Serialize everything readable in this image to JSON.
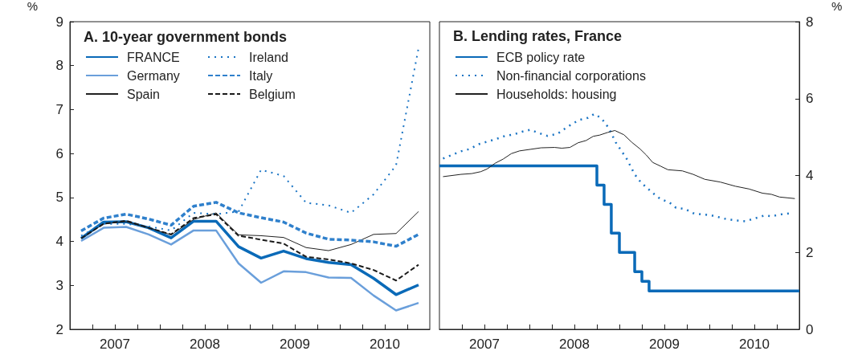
{
  "chart_data": [
    {
      "type": "line",
      "title": "A. 10-year government bonds",
      "ylabel": "%",
      "x": [
        2007.125,
        2007.375,
        2007.625,
        2007.875,
        2008.125,
        2008.375,
        2008.625,
        2008.875,
        2009.125,
        2009.375,
        2009.625,
        2009.875,
        2010.125,
        2010.375,
        2010.625,
        2010.875
      ],
      "xlim": [
        2007,
        2011
      ],
      "xticks": [
        {
          "value": 2007.25,
          "label": null
        },
        {
          "value": 2007.5,
          "label": "2007"
        },
        {
          "value": 2007.75,
          "label": null
        },
        {
          "value": 2008,
          "label": null
        },
        {
          "value": 2008.25,
          "label": null
        },
        {
          "value": 2008.5,
          "label": "2008"
        },
        {
          "value": 2008.75,
          "label": null
        },
        {
          "value": 2009,
          "label": null
        },
        {
          "value": 2009.25,
          "label": null
        },
        {
          "value": 2009.5,
          "label": "2009"
        },
        {
          "value": 2009.75,
          "label": null
        },
        {
          "value": 2010,
          "label": null
        },
        {
          "value": 2010.25,
          "label": null
        },
        {
          "value": 2010.5,
          "label": "2010"
        },
        {
          "value": 2010.75,
          "label": null
        }
      ],
      "ylim": [
        2,
        9
      ],
      "yticks": [
        2,
        3,
        4,
        5,
        6,
        7,
        8,
        9
      ],
      "grid": false,
      "legend": "top left",
      "marker": "none",
      "series": [
        {
          "name": "FRANCE",
          "color": "#0a6ab8",
          "line_style": "solid",
          "values": [
            4.07,
            4.44,
            4.45,
            4.31,
            4.08,
            4.46,
            4.46,
            3.88,
            3.62,
            3.78,
            3.61,
            3.52,
            3.47,
            3.16,
            2.79,
            3.01
          ]
        },
        {
          "name": "Germany",
          "color": "#6a9fdb",
          "line_style": "solid",
          "values": [
            4.01,
            4.31,
            4.33,
            4.16,
            3.93,
            4.25,
            4.25,
            3.5,
            3.06,
            3.32,
            3.3,
            3.18,
            3.17,
            2.77,
            2.43,
            2.6
          ]
        },
        {
          "name": "Spain",
          "color": "#222222",
          "line_style": "solid",
          "values": [
            4.07,
            4.4,
            4.45,
            4.31,
            4.15,
            4.5,
            4.65,
            4.15,
            4.13,
            4.09,
            3.86,
            3.79,
            3.93,
            4.16,
            4.18,
            4.68
          ]
        },
        {
          "name": "Ireland",
          "color": "#1a74c4",
          "line_style": "dotted",
          "values": [
            4.13,
            4.4,
            4.4,
            4.34,
            4.25,
            4.65,
            4.62,
            4.68,
            5.63,
            5.49,
            4.88,
            4.82,
            4.65,
            5.07,
            5.73,
            8.4
          ]
        },
        {
          "name": "Italy",
          "color": "#2f80cc",
          "line_style": "dashed",
          "values": [
            4.24,
            4.53,
            4.62,
            4.51,
            4.37,
            4.8,
            4.89,
            4.65,
            4.54,
            4.44,
            4.19,
            4.05,
            4.03,
            3.99,
            3.89,
            4.16
          ]
        },
        {
          "name": "Belgium",
          "color": "#1a1a1a",
          "line_style": "dashed",
          "values": [
            4.07,
            4.4,
            4.47,
            4.31,
            4.16,
            4.53,
            4.62,
            4.13,
            4.04,
            3.95,
            3.65,
            3.59,
            3.5,
            3.35,
            3.11,
            3.47
          ]
        }
      ]
    },
    {
      "type": "line",
      "title": "B. Lending rates, France",
      "y2label": "%",
      "xlim": [
        2007,
        2011
      ],
      "xticks": [
        {
          "value": 2007.25,
          "label": null
        },
        {
          "value": 2007.5,
          "label": "2007"
        },
        {
          "value": 2007.75,
          "label": null
        },
        {
          "value": 2008,
          "label": null
        },
        {
          "value": 2008.25,
          "label": null
        },
        {
          "value": 2008.5,
          "label": "2008"
        },
        {
          "value": 2008.75,
          "label": null
        },
        {
          "value": 2009,
          "label": null
        },
        {
          "value": 2009.25,
          "label": null
        },
        {
          "value": 2009.5,
          "label": "2009"
        },
        {
          "value": 2009.75,
          "label": null
        },
        {
          "value": 2010,
          "label": null
        },
        {
          "value": 2010.25,
          "label": null
        },
        {
          "value": 2010.5,
          "label": "2010"
        },
        {
          "value": 2010.75,
          "label": null
        }
      ],
      "y2lim": [
        0,
        8
      ],
      "y2ticks": [
        0,
        2,
        4,
        6,
        8
      ],
      "grid": false,
      "legend": "top left",
      "marker": "none",
      "series": [
        {
          "name": "ECB policy rate",
          "type": "step",
          "axis": "y2",
          "color": "#0a6ab8",
          "line_style": "solid",
          "x": [
            2007,
            2008.75,
            2008.83,
            2008.91,
            2009,
            2009.17,
            2009.25,
            2009.33,
            2011
          ],
          "values": [
            4.25,
            3.75,
            3.25,
            2.5,
            2,
            1.5,
            1.25,
            1,
            1
          ]
        },
        {
          "name": "Non-financial corporations",
          "axis": "y2",
          "color": "#1a74c4",
          "line_style": "dotted",
          "x": [
            2007.04,
            2007.24,
            2007.34,
            2007.43,
            2007.53,
            2007.62,
            2007.73,
            2007.83,
            2007.92,
            2008.01,
            2008.11,
            2008.2,
            2008.31,
            2008.39,
            2008.48,
            2008.56,
            2008.65,
            2008.72,
            2008.8,
            2008.88,
            2008.96,
            2009.02,
            2009.08,
            2009.17,
            2009.24,
            2009.31,
            2009.39,
            2009.46,
            2009.55,
            2009.63,
            2009.73,
            2009.82,
            2009.91,
            2010.01,
            2010.1,
            2010.2,
            2010.31,
            2010.4,
            2010.5,
            2010.61,
            2010.69,
            2010.8,
            2010.9
          ],
          "values": [
            4.44,
            4.63,
            4.69,
            4.81,
            4.88,
            4.94,
            5.03,
            5.07,
            5.14,
            5.19,
            5.1,
            5.03,
            5.08,
            5.21,
            5.35,
            5.45,
            5.5,
            5.6,
            5.49,
            5.24,
            4.86,
            4.65,
            4.44,
            4.03,
            3.82,
            3.67,
            3.51,
            3.38,
            3.31,
            3.16,
            3.13,
            3.02,
            2.99,
            2.97,
            2.92,
            2.86,
            2.83,
            2.81,
            2.88,
            2.96,
            2.94,
            2.99,
            3.02
          ]
        },
        {
          "name": "Households: housing",
          "axis": "y2",
          "color": "#222222",
          "line_style": "solid",
          "x": [
            2007.04,
            2007.24,
            2007.36,
            2007.46,
            2007.53,
            2007.62,
            2007.71,
            2007.8,
            2007.89,
            2008.01,
            2008.13,
            2008.28,
            2008.36,
            2008.45,
            2008.54,
            2008.63,
            2008.71,
            2008.78,
            2008.87,
            2008.95,
            2009.05,
            2009.14,
            2009.23,
            2009.3,
            2009.37,
            2009.46,
            2009.54,
            2009.7,
            2009.82,
            2009.95,
            2010.12,
            2010.29,
            2010.44,
            2010.59,
            2010.69,
            2010.78,
            2010.95
          ],
          "values": [
            3.97,
            4.03,
            4.05,
            4.1,
            4.17,
            4.32,
            4.43,
            4.57,
            4.64,
            4.68,
            4.72,
            4.73,
            4.71,
            4.73,
            4.85,
            4.91,
            5.02,
            5.05,
            5.12,
            5.17,
            5.06,
            4.86,
            4.69,
            4.53,
            4.34,
            4.24,
            4.15,
            4.12,
            4.03,
            3.9,
            3.83,
            3.72,
            3.65,
            3.54,
            3.51,
            3.44,
            3.4
          ]
        }
      ]
    }
  ]
}
